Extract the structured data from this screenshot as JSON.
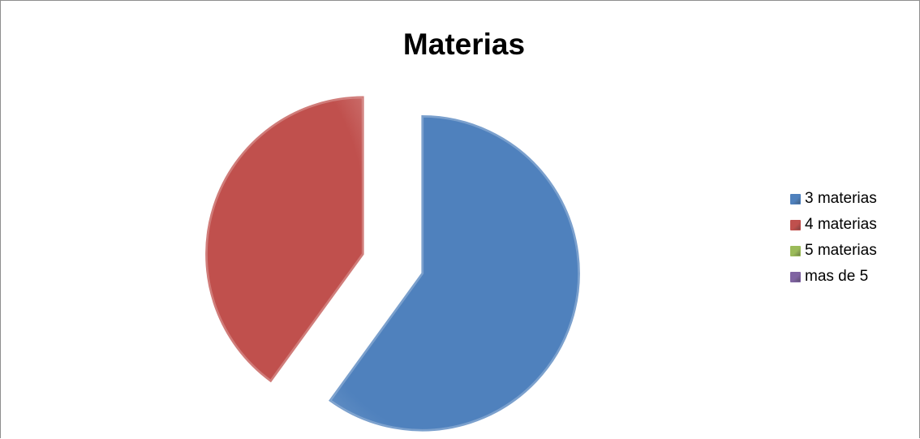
{
  "chart_data": {
    "type": "pie",
    "title": "Materias",
    "categories": [
      "3 materias",
      "4 materias",
      "5 materias",
      "mas de 5"
    ],
    "values": [
      60,
      40,
      0,
      0
    ],
    "colors": [
      "#4f81bd",
      "#c0504d",
      "#9bbb59",
      "#8064a2"
    ],
    "exploded": true,
    "legend_position": "right"
  }
}
